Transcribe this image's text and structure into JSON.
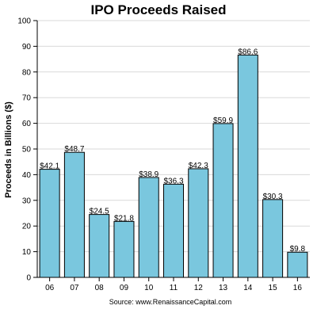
{
  "chart_data": {
    "type": "bar",
    "title": "IPO Proceeds Raised",
    "xlabel": "",
    "ylabel": "Proceeds in Billions ($)",
    "source": "Source: www.RenaissanceCapital.com",
    "categories": [
      "06",
      "07",
      "08",
      "09",
      "10",
      "11",
      "12",
      "13",
      "14",
      "15",
      "16"
    ],
    "values": [
      42.1,
      48.7,
      24.5,
      21.8,
      38.9,
      36.3,
      42.3,
      59.9,
      86.6,
      30.3,
      9.8
    ],
    "value_labels": [
      "$42.1",
      "$48.7",
      "$24.5",
      "$21.8",
      "$38.9",
      "$36.3",
      "$42.3",
      "$59.9",
      "$86.6",
      "$30.3",
      "$9.8"
    ],
    "ylim": [
      0,
      100
    ],
    "yticks": [
      "0",
      "10",
      "20",
      "30",
      "40",
      "50",
      "60",
      "70",
      "80",
      "90",
      "100"
    ],
    "grid": true,
    "legend": "none",
    "bar_color": "#7ac7de",
    "bar_edge_color": "#000000"
  }
}
